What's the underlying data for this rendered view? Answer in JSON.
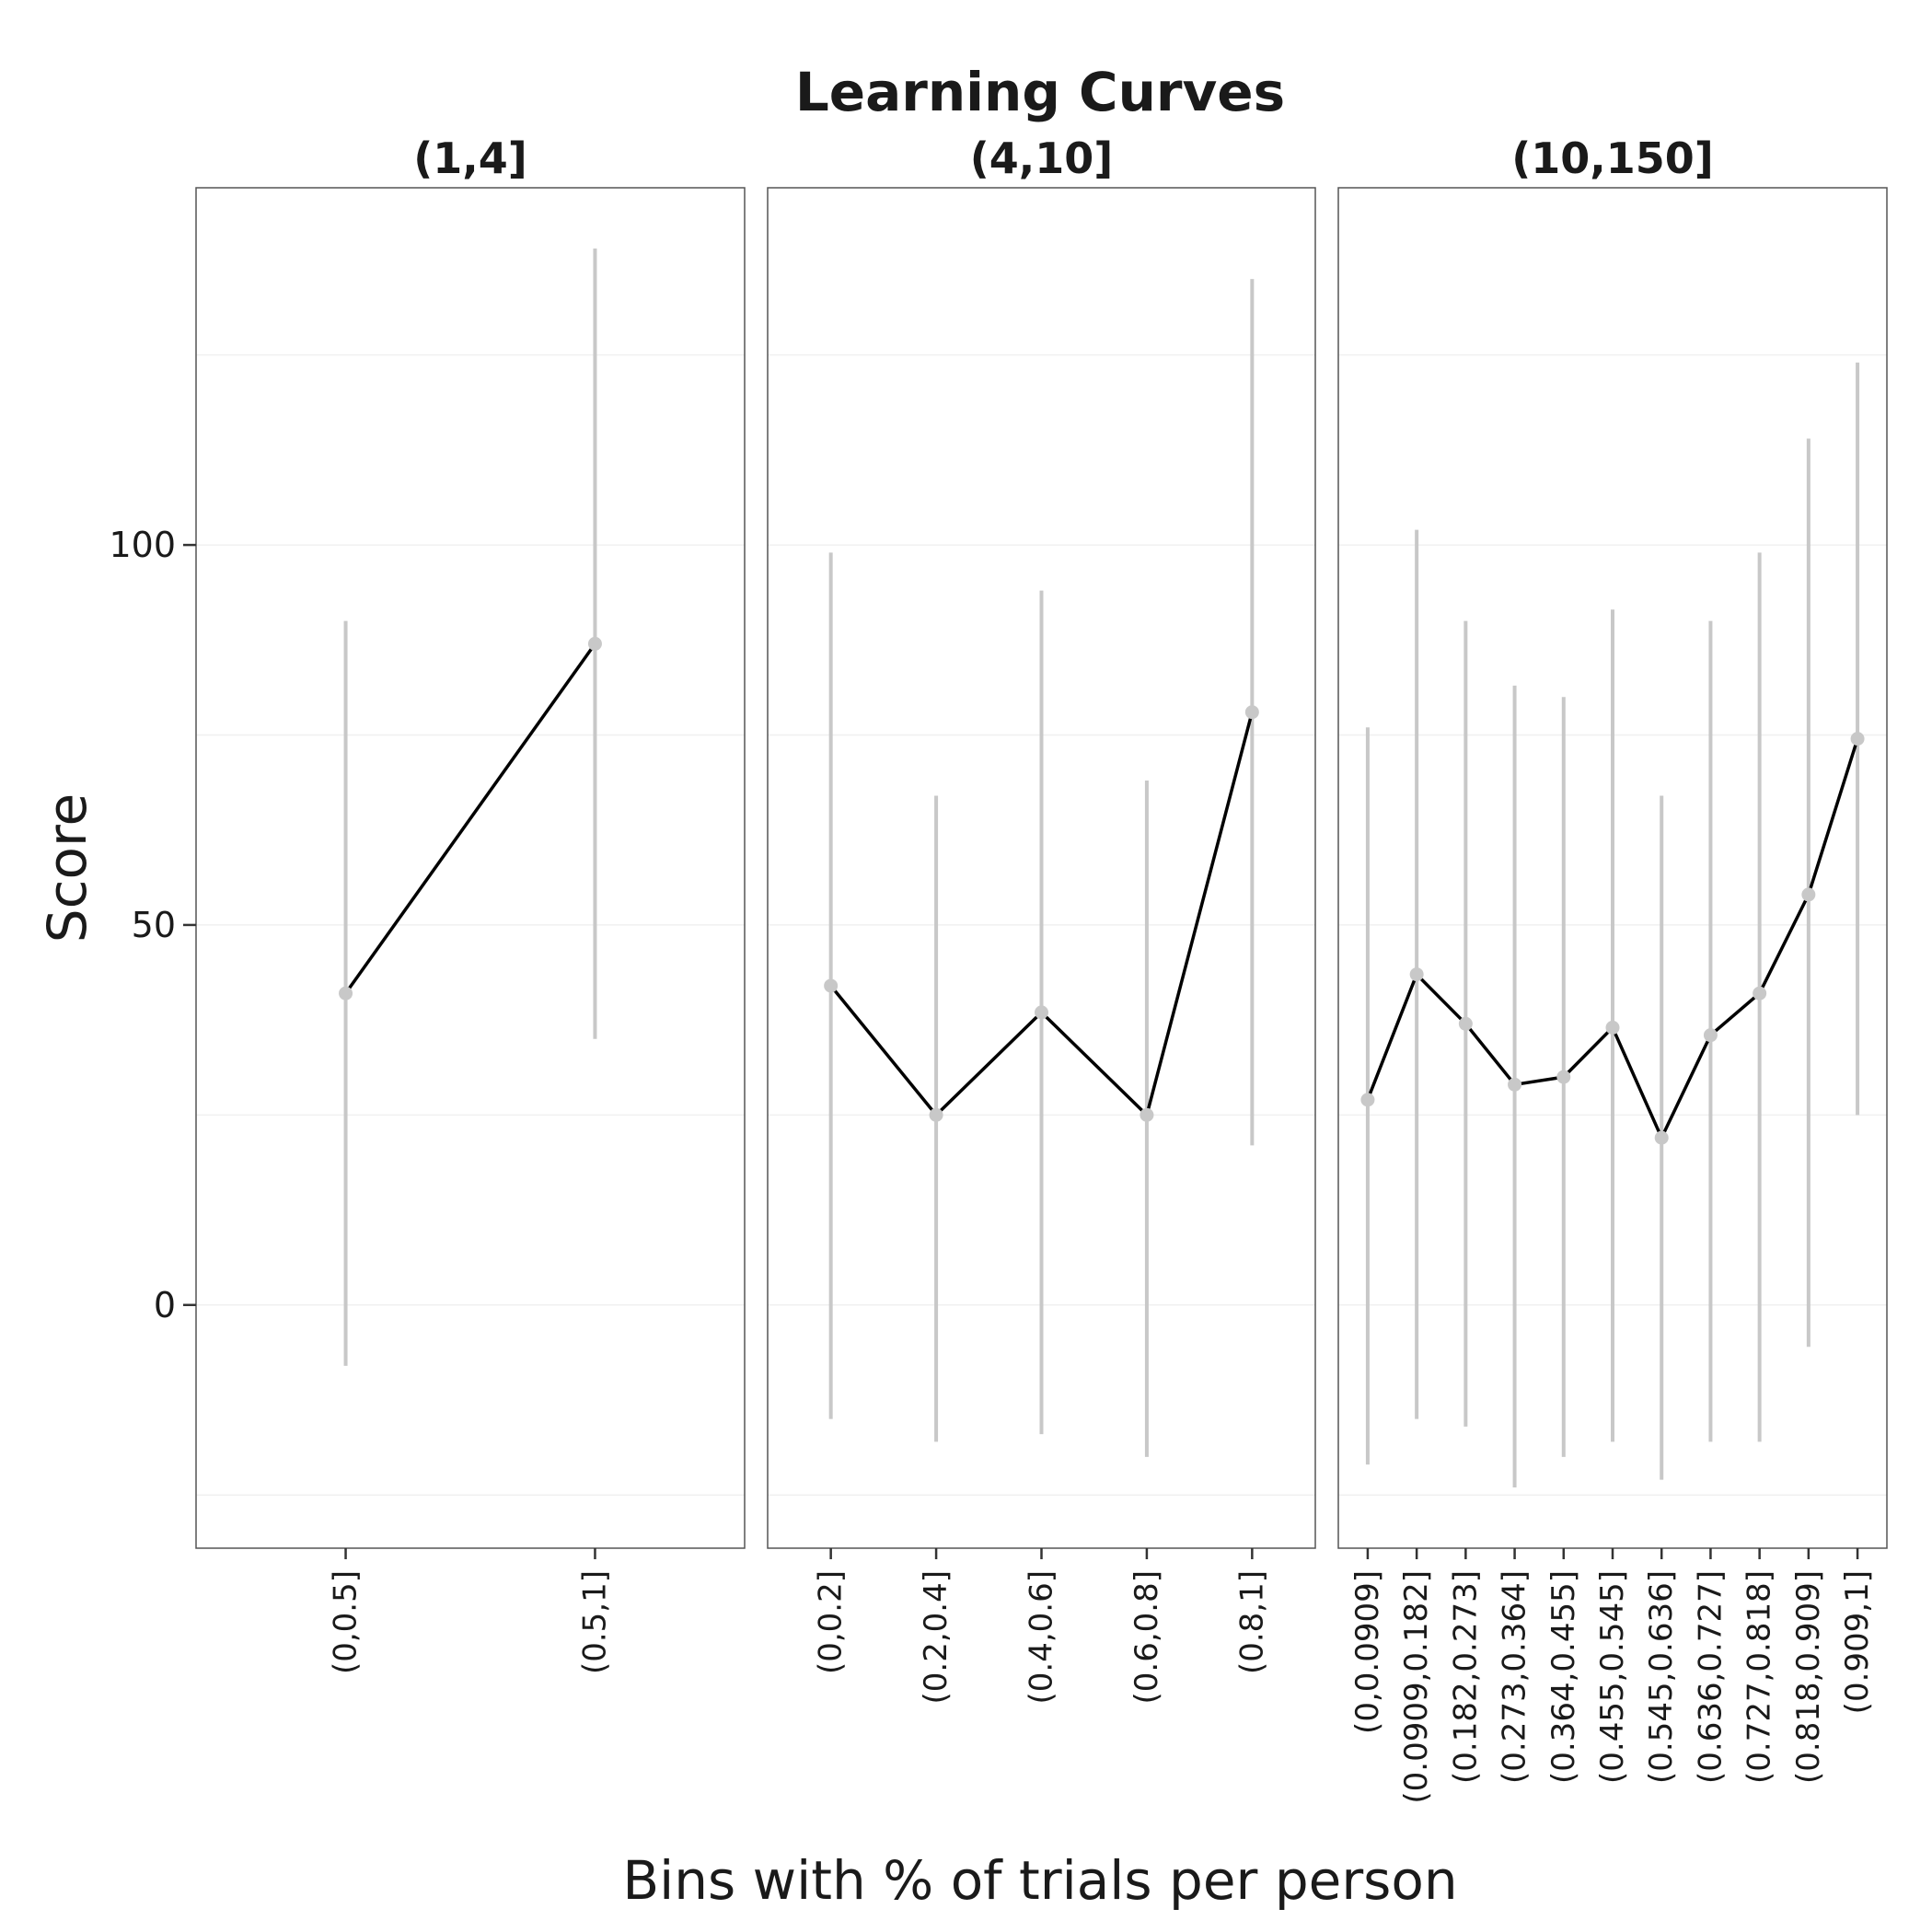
{
  "chart_data": {
    "type": "line",
    "title": "Learning Curves",
    "xlabel": "Bins with % of trials per person",
    "ylabel": "Score",
    "ylim": [
      -32,
      147
    ],
    "yticks": [
      0,
      50,
      100
    ],
    "grid": true,
    "error_bars": true,
    "colors": {
      "line": "#000000",
      "points": "#c8c8c8",
      "error_bars": "#c8c8c8",
      "grid": "#f0f0f0",
      "frame": "#555555"
    },
    "panels": [
      {
        "strip": "(1,4]",
        "categories": [
          "(0,0.5]",
          "(0.5,1]"
        ],
        "values": [
          41,
          87
        ],
        "lower": [
          -8,
          35
        ],
        "upper": [
          90,
          139
        ]
      },
      {
        "strip": "(4,10]",
        "categories": [
          "(0,0.2]",
          "(0.2,0.4]",
          "(0.4,0.6]",
          "(0.6,0.8]",
          "(0.8,1]"
        ],
        "values": [
          42,
          25,
          38.5,
          25,
          78
        ],
        "lower": [
          -15,
          -18,
          -17,
          -20,
          21
        ],
        "upper": [
          99,
          67,
          94,
          69,
          135
        ]
      },
      {
        "strip": "(10,150]",
        "categories": [
          "(0,0.0909]",
          "(0.0909,0.182]",
          "(0.182,0.273]",
          "(0.273,0.364]",
          "(0.364,0.455]",
          "(0.455,0.545]",
          "(0.545,0.636]",
          "(0.636,0.727]",
          "(0.727,0.818]",
          "(0.818,0.909]",
          "(0.909,1]"
        ],
        "values": [
          27,
          43.5,
          37,
          29,
          30,
          36.5,
          22,
          35.5,
          41,
          54,
          74.5
        ],
        "lower": [
          -21,
          -15,
          -16,
          -24,
          -20,
          -18,
          -23,
          -18,
          -18,
          -5.5,
          25
        ],
        "upper": [
          76,
          102,
          90,
          81.5,
          80,
          91.5,
          67,
          90,
          99,
          114,
          124
        ]
      }
    ]
  }
}
